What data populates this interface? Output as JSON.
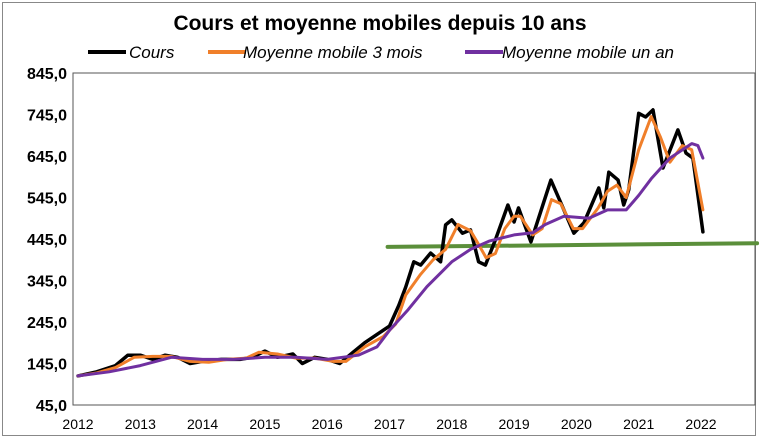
{
  "chart_data": {
    "type": "line",
    "title": "Cours et moyenne mobiles depuis 10 ans",
    "xlabel": "",
    "ylabel": "",
    "xlim": [
      2012,
      2022.9
    ],
    "ylim": [
      45,
      845
    ],
    "yticks": [
      "845,0",
      "745,0",
      "645,0",
      "545,0",
      "445,0",
      "345,0",
      "245,0",
      "145,0",
      "45,0"
    ],
    "ytick_values": [
      845,
      745,
      645,
      545,
      445,
      345,
      245,
      145,
      45
    ],
    "xticks": [
      "2012",
      "2013",
      "2014",
      "2015",
      "2016",
      "2017",
      "2018",
      "2019",
      "2020",
      "2021",
      "2022"
    ],
    "xtick_values": [
      2012,
      2013,
      2014,
      2015,
      2016,
      2017,
      2018,
      2019,
      2020,
      2021,
      2022
    ],
    "grid": false,
    "legend_position": "top",
    "series": [
      {
        "name": "Cours",
        "color": "#000000",
        "x": [
          2012.0,
          2012.3,
          2012.6,
          2012.8,
          2013.0,
          2013.2,
          2013.4,
          2013.6,
          2013.8,
          2014.0,
          2014.3,
          2014.6,
          2014.8,
          2015.0,
          2015.2,
          2015.45,
          2015.6,
          2015.8,
          2016.0,
          2016.2,
          2016.4,
          2016.6,
          2016.8,
          2017.0,
          2017.15,
          2017.26,
          2017.39,
          2017.5,
          2017.66,
          2017.82,
          2017.9,
          2018.0,
          2018.17,
          2018.3,
          2018.43,
          2018.54,
          2018.7,
          2018.9,
          2019.0,
          2019.07,
          2019.27,
          2019.59,
          2019.8,
          2019.96,
          2020.12,
          2020.36,
          2020.44,
          2020.52,
          2020.67,
          2020.76,
          2020.84,
          2021.0,
          2021.11,
          2021.23,
          2021.39,
          2021.63,
          2021.76,
          2021.87,
          2022.03
        ],
        "y": [
          115,
          125,
          140,
          165,
          165,
          155,
          165,
          160,
          145,
          150,
          155,
          155,
          160,
          175,
          160,
          168,
          145,
          160,
          155,
          145,
          170,
          195,
          215,
          235,
          285,
          329,
          390,
          382,
          411,
          390,
          479,
          491,
          459,
          467,
          390,
          382,
          443,
          527,
          486,
          520,
          438,
          587,
          515,
          459,
          484,
          568,
          520,
          606,
          587,
          527,
          563,
          748,
          739,
          756,
          616,
          708,
          652,
          640,
          462
        ]
      },
      {
        "name": "Moyenne mobile 3 mois",
        "color": "#F07F2A",
        "x": [
          2012.0,
          2012.3,
          2012.6,
          2012.9,
          2013.2,
          2013.5,
          2013.8,
          2014.1,
          2014.4,
          2014.7,
          2014.9,
          2015.2,
          2015.5,
          2015.8,
          2016.1,
          2016.3,
          2016.6,
          2016.9,
          2017.1,
          2017.26,
          2017.5,
          2017.7,
          2017.9,
          2018.0,
          2018.1,
          2018.3,
          2018.4,
          2018.55,
          2018.7,
          2018.85,
          2019.0,
          2019.1,
          2019.3,
          2019.45,
          2019.6,
          2019.75,
          2019.95,
          2020.1,
          2020.35,
          2020.5,
          2020.65,
          2020.8,
          2021.0,
          2021.2,
          2021.35,
          2021.5,
          2021.7,
          2021.85,
          2022.03
        ],
        "y": [
          115,
          122,
          135,
          160,
          162,
          162,
          150,
          148,
          155,
          158,
          172,
          168,
          158,
          158,
          150,
          150,
          185,
          210,
          240,
          310,
          360,
          395,
          420,
          450,
          480,
          465,
          440,
          400,
          410,
          470,
          500,
          500,
          455,
          470,
          540,
          530,
          470,
          470,
          520,
          560,
          575,
          545,
          660,
          740,
          690,
          630,
          670,
          660,
          515
        ]
      },
      {
        "name": "Moyenne mobile un an",
        "color": "#7030A0",
        "x": [
          2012.0,
          2012.5,
          2013.0,
          2013.5,
          2014.0,
          2014.5,
          2015.0,
          2015.5,
          2016.0,
          2016.5,
          2016.8,
          2017.0,
          2017.3,
          2017.6,
          2018.0,
          2018.3,
          2018.6,
          2019.0,
          2019.3,
          2019.5,
          2019.8,
          2020.2,
          2020.5,
          2020.8,
          2021.0,
          2021.2,
          2021.5,
          2021.85,
          2021.95,
          2022.03
        ],
        "y": [
          115,
          125,
          140,
          160,
          155,
          155,
          160,
          160,
          155,
          165,
          185,
          225,
          275,
          330,
          390,
          420,
          440,
          455,
          460,
          480,
          500,
          495,
          515,
          515,
          550,
          590,
          640,
          675,
          670,
          640
        ]
      },
      {
        "name": "",
        "color": "#5B8F3A",
        "x": [
          2016.97,
          2022.9
        ],
        "y": [
          426,
          435
        ]
      }
    ]
  }
}
